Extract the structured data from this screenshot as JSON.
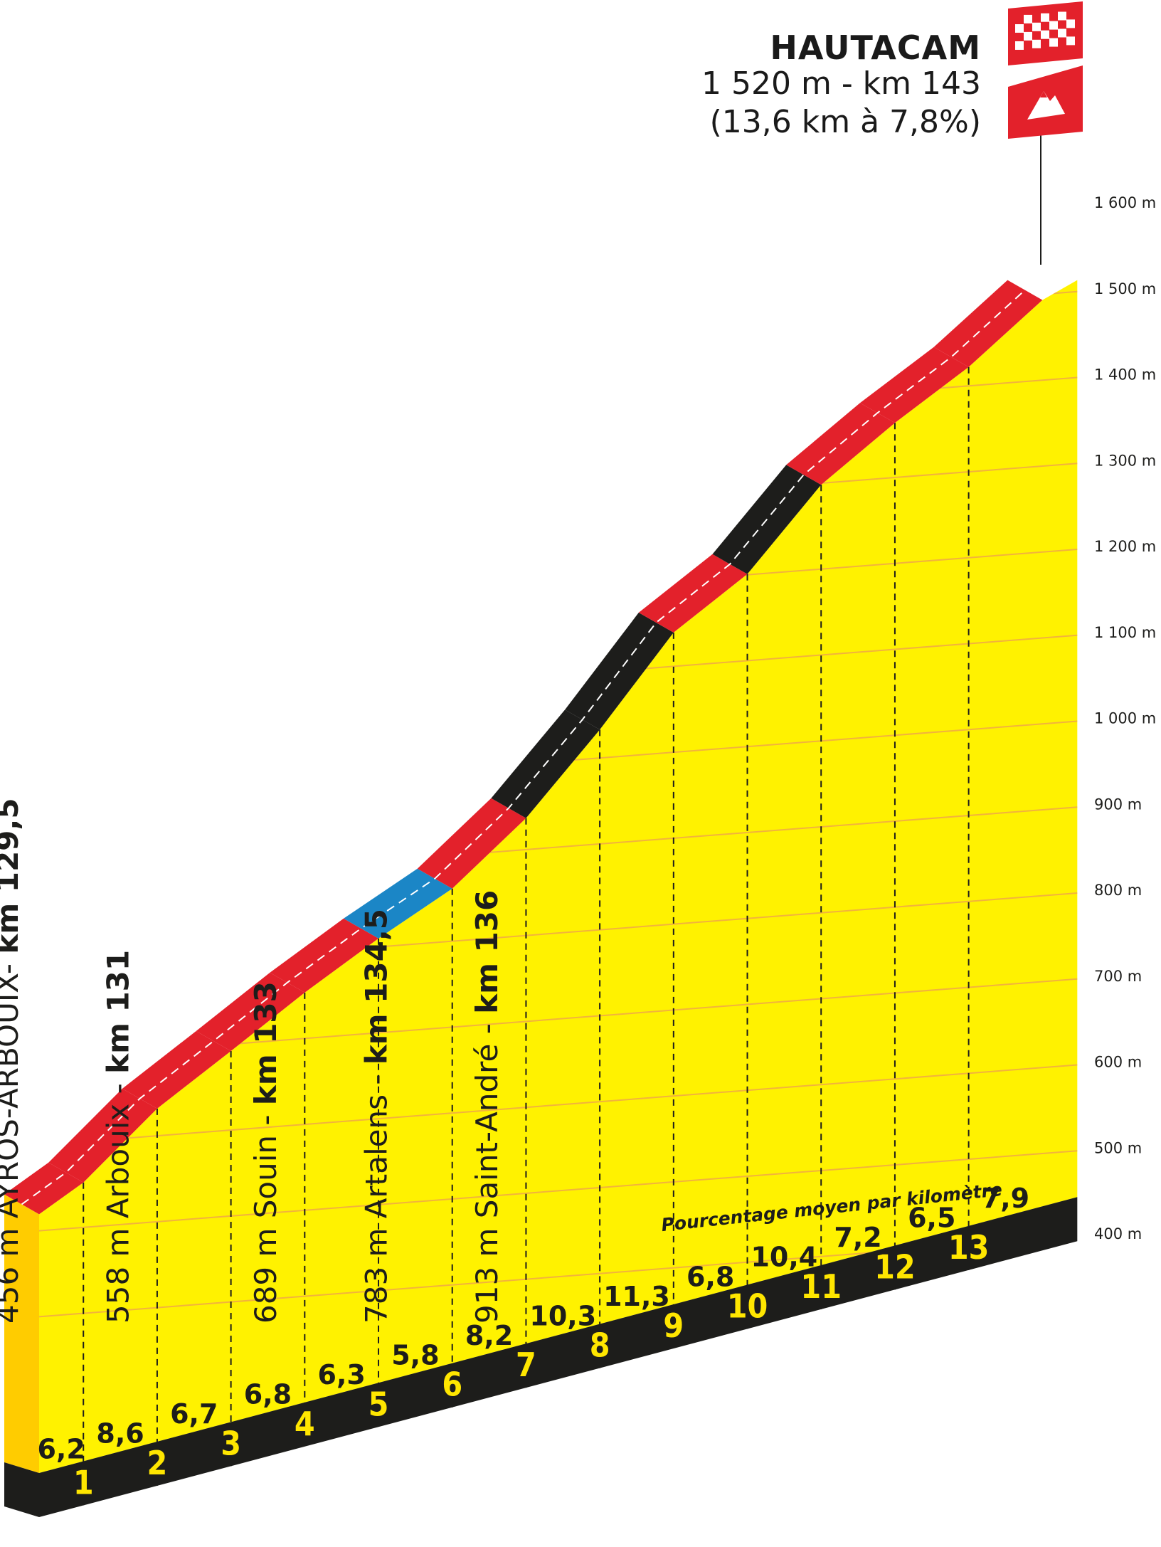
{
  "summit": {
    "name": "HAUTACAM",
    "detail_line1": "1 520 m - km 143",
    "detail_line2": "(13,6 km à 7,8%)"
  },
  "caption": "Pourcentage moyen par kilomètre",
  "colors": {
    "profile_fill": "#fff200",
    "profile_front": "#ffcc00",
    "base_band": "#1d1d1b",
    "grid": "#f2b33d",
    "km_number": "#ffe600",
    "gradient_red": "#e3212b",
    "gradient_black": "#1d1d1b",
    "gradient_blue": "#1b86c6",
    "flag_red": "#e3212b"
  },
  "icons": [
    "checkered-finish-flag-icon",
    "mountain-summit-icon"
  ],
  "chart_data": {
    "type": "area",
    "title": "HAUTACAM",
    "xlabel": "",
    "ylabel": "",
    "ylim": [
      400,
      1600
    ],
    "x_unit": "km from start of climb",
    "y_axis_labels": [
      "1 600 m",
      "1 500 m",
      "1 400 m",
      "1 300 m",
      "1 200 m",
      "1 100 m",
      "1 000 m",
      "900 m",
      "800 m",
      "700 m",
      "600 m",
      "500 m",
      "400 m"
    ],
    "km_markers": [
      "1",
      "2",
      "3",
      "4",
      "5",
      "6",
      "7",
      "8",
      "9",
      "10",
      "11",
      "12",
      "13"
    ],
    "km_gradients": [
      {
        "label": "6,2",
        "value": 6.2,
        "color": "red"
      },
      {
        "label": "8,6",
        "value": 8.6,
        "color": "red"
      },
      {
        "label": "6,7",
        "value": 6.7,
        "color": "red"
      },
      {
        "label": "6,8",
        "value": 6.8,
        "color": "red"
      },
      {
        "label": "6,3",
        "value": 6.3,
        "color": "red"
      },
      {
        "label": "5,8",
        "value": 5.8,
        "color": "blue"
      },
      {
        "label": "8,2",
        "value": 8.2,
        "color": "red"
      },
      {
        "label": "10,3",
        "value": 10.3,
        "color": "black"
      },
      {
        "label": "11,3",
        "value": 11.3,
        "color": "black"
      },
      {
        "label": "6,8",
        "value": 6.8,
        "color": "red"
      },
      {
        "label": "10,4",
        "value": 10.4,
        "color": "black"
      },
      {
        "label": "7,2",
        "value": 7.2,
        "color": "red"
      },
      {
        "label": "6,5",
        "value": 6.5,
        "color": "red"
      },
      {
        "label": "7,9",
        "value": 7.9,
        "color": "red"
      }
    ],
    "profile_points": [
      {
        "km": 0,
        "alt": 456
      },
      {
        "km": 0.6,
        "alt": 493
      },
      {
        "km": 1.6,
        "alt": 579
      },
      {
        "km": 2.6,
        "alt": 646
      },
      {
        "km": 3.6,
        "alt": 714
      },
      {
        "km": 4.6,
        "alt": 777
      },
      {
        "km": 5.6,
        "alt": 835
      },
      {
        "km": 6.6,
        "alt": 917
      },
      {
        "km": 7.6,
        "alt": 1020
      },
      {
        "km": 8.6,
        "alt": 1133
      },
      {
        "km": 9.6,
        "alt": 1201
      },
      {
        "km": 10.6,
        "alt": 1305
      },
      {
        "km": 11.6,
        "alt": 1377
      },
      {
        "km": 12.6,
        "alt": 1442
      },
      {
        "km": 13.6,
        "alt": 1520
      }
    ],
    "waypoints": [
      {
        "alt_text": "456 m ",
        "name": "AYROS-ARBOUIX",
        "sep": "- ",
        "km_text": "km 129,5",
        "km": 0
      },
      {
        "alt_text": "558 m ",
        "name": "Arbouix",
        "sep": " - ",
        "km_text": "km 131",
        "km": 1.5
      },
      {
        "alt_text": "689 m ",
        "name": "Souin",
        "sep": " - ",
        "km_text": "km 133",
        "km": 3.5
      },
      {
        "alt_text": "783 m ",
        "name": "Artalens",
        "sep": " - ",
        "km_text": "km 134,5",
        "km": 5.0
      },
      {
        "alt_text": "913 m ",
        "name": "Saint-André",
        "sep": " - ",
        "km_text": "km 136",
        "km": 6.5
      }
    ]
  }
}
